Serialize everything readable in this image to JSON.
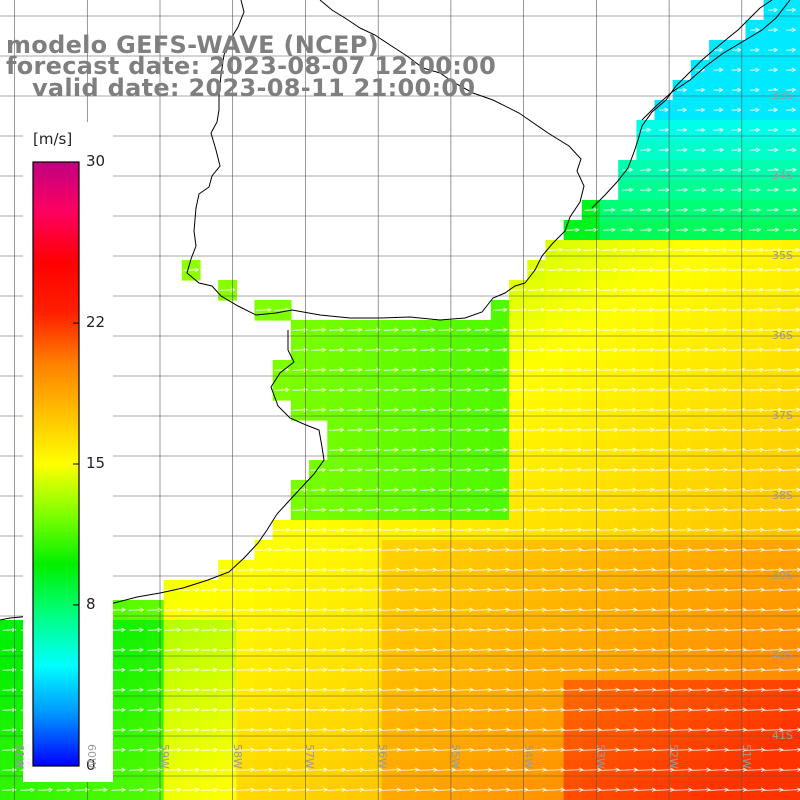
{
  "title": {
    "line1": "modelo GEFS-WAVE (NCEP)",
    "line2": "forecast date: 2023-08-07 12:00:00",
    "line3": "   valid date: 2023-08-11 21:00:00"
  },
  "colorbar": {
    "unit": "[m/s]",
    "min": 0,
    "max": 30,
    "ticks": [
      {
        "label": "30",
        "value": 30
      },
      {
        "label": "22",
        "value": 22
      },
      {
        "label": "15",
        "value": 15
      },
      {
        "label": "8",
        "value": 8
      },
      {
        "label": "0",
        "value": 0
      }
    ],
    "gradient": [
      "#0000ff",
      "#0090ff",
      "#00ffff",
      "#00ff80",
      "#00f000",
      "#80ff00",
      "#ffff00",
      "#ffc000",
      "#ff8000",
      "#ff2000",
      "#ff0000",
      "#ff0060",
      "#c00080"
    ]
  },
  "map": {
    "lon_min": -61.2,
    "lon_max": -50.2,
    "lat_max": -31.8,
    "lat_min": -41.8,
    "lat_ticks": [
      {
        "label": "33S",
        "value": -33
      },
      {
        "label": "34S",
        "value": -34
      },
      {
        "label": "35S",
        "value": -35
      },
      {
        "label": "36S",
        "value": -36
      },
      {
        "label": "37S",
        "value": -37
      },
      {
        "label": "38S",
        "value": -38
      },
      {
        "label": "39S",
        "value": -39
      },
      {
        "label": "40S",
        "value": -40
      },
      {
        "label": "41S",
        "value": -41
      }
    ],
    "lon_ticks": [
      {
        "label": "61W",
        "value": -61
      },
      {
        "label": "60W",
        "value": -60
      },
      {
        "label": "59W",
        "value": -59
      },
      {
        "label": "58W",
        "value": -58
      },
      {
        "label": "57W",
        "value": -57
      },
      {
        "label": "56W",
        "value": -56
      },
      {
        "label": "55W",
        "value": -55
      },
      {
        "label": "54W",
        "value": -54
      },
      {
        "label": "53W",
        "value": -53
      },
      {
        "label": "52W",
        "value": -52
      },
      {
        "label": "51W",
        "value": -51
      }
    ],
    "grid_step_deg": 0.25,
    "wind_direction": "from west/west-southwest",
    "coast_color": "#000000",
    "grid_color": "#555555"
  }
}
